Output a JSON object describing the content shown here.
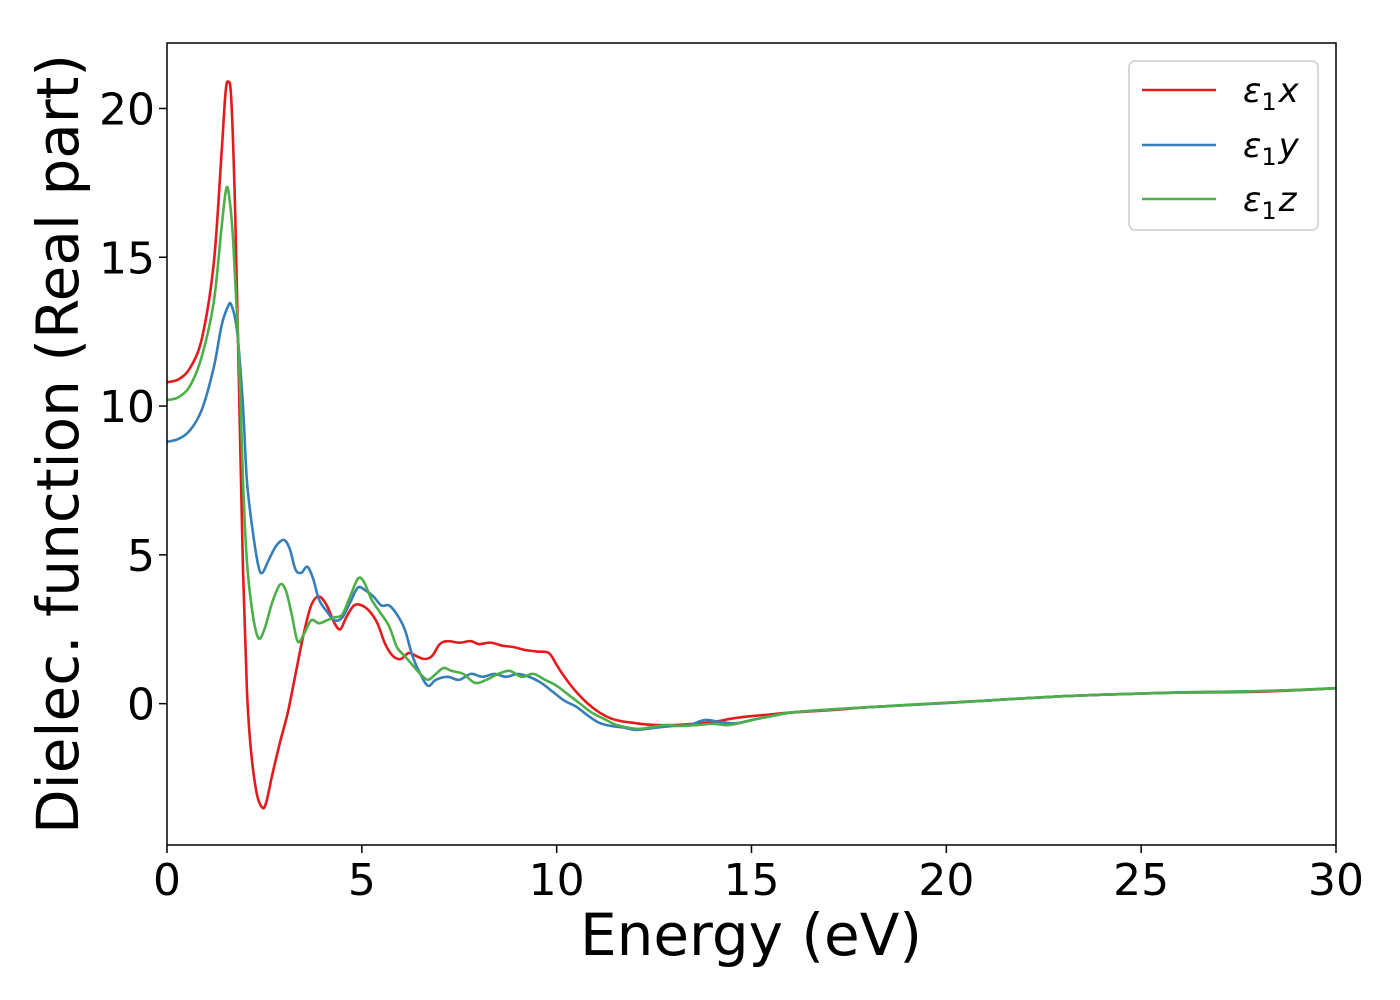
{
  "chart_data": {
    "type": "line",
    "xlabel": "Energy (eV)",
    "ylabel": "Dielec. function (Real part)",
    "xlim": [
      0,
      30
    ],
    "ylim": [
      -4.75,
      22.2
    ],
    "xticks": [
      0,
      5,
      10,
      15,
      20,
      25,
      30
    ],
    "xtick_labels": [
      "0",
      "5",
      "10",
      "15",
      "20",
      "25",
      "30"
    ],
    "yticks": [
      0,
      5,
      10,
      15,
      20
    ],
    "ytick_labels": [
      "0",
      "5",
      "10",
      "15",
      "20"
    ],
    "grid": false,
    "legend_position": "top-right",
    "series": [
      {
        "name": "ε₁x",
        "legend_main": "ε",
        "legend_sub": "1",
        "legend_suffix": "x",
        "color": "#e41a1c",
        "points": [
          [
            0,
            10.8
          ],
          [
            0.3,
            10.9
          ],
          [
            0.6,
            11.3
          ],
          [
            0.9,
            12.3
          ],
          [
            1.2,
            14.8
          ],
          [
            1.4,
            18.5
          ],
          [
            1.5,
            20.5
          ],
          [
            1.57,
            20.9
          ],
          [
            1.65,
            20.3
          ],
          [
            1.75,
            16.5
          ],
          [
            1.85,
            10.5
          ],
          [
            1.95,
            4.5
          ],
          [
            2.05,
            0.5
          ],
          [
            2.15,
            -1.5
          ],
          [
            2.3,
            -3.0
          ],
          [
            2.45,
            -3.5
          ],
          [
            2.55,
            -3.3
          ],
          [
            2.7,
            -2.4
          ],
          [
            2.9,
            -1.3
          ],
          [
            3.1,
            -0.3
          ],
          [
            3.3,
            1.0
          ],
          [
            3.5,
            2.3
          ],
          [
            3.7,
            3.3
          ],
          [
            3.9,
            3.6
          ],
          [
            4.1,
            3.3
          ],
          [
            4.3,
            2.7
          ],
          [
            4.45,
            2.5
          ],
          [
            4.6,
            2.9
          ],
          [
            4.8,
            3.3
          ],
          [
            5.0,
            3.3
          ],
          [
            5.2,
            3.1
          ],
          [
            5.4,
            2.7
          ],
          [
            5.6,
            2.0
          ],
          [
            5.8,
            1.6
          ],
          [
            6.0,
            1.5
          ],
          [
            6.2,
            1.7
          ],
          [
            6.4,
            1.6
          ],
          [
            6.6,
            1.5
          ],
          [
            6.8,
            1.6
          ],
          [
            7.0,
            2.0
          ],
          [
            7.2,
            2.1
          ],
          [
            7.5,
            2.05
          ],
          [
            7.8,
            2.1
          ],
          [
            8.0,
            2.0
          ],
          [
            8.3,
            2.05
          ],
          [
            8.6,
            1.95
          ],
          [
            8.9,
            1.9
          ],
          [
            9.2,
            1.8
          ],
          [
            9.5,
            1.75
          ],
          [
            9.8,
            1.7
          ],
          [
            10.0,
            1.3
          ],
          [
            10.2,
            0.9
          ],
          [
            10.5,
            0.4
          ],
          [
            10.8,
            0.0
          ],
          [
            11.1,
            -0.3
          ],
          [
            11.4,
            -0.5
          ],
          [
            11.7,
            -0.6
          ],
          [
            12.0,
            -0.65
          ],
          [
            12.3,
            -0.7
          ],
          [
            12.6,
            -0.72
          ],
          [
            13.0,
            -0.72
          ],
          [
            13.5,
            -0.68
          ],
          [
            14.0,
            -0.62
          ],
          [
            14.5,
            -0.5
          ],
          [
            15.0,
            -0.42
          ],
          [
            15.5,
            -0.36
          ],
          [
            16.0,
            -0.3
          ],
          [
            17.0,
            -0.22
          ],
          [
            18.0,
            -0.12
          ],
          [
            19.0,
            -0.05
          ],
          [
            20.0,
            0.03
          ],
          [
            21.0,
            0.1
          ],
          [
            22.0,
            0.18
          ],
          [
            23.0,
            0.25
          ],
          [
            24.0,
            0.3
          ],
          [
            25.0,
            0.34
          ],
          [
            26.0,
            0.37
          ],
          [
            27.0,
            0.38
          ],
          [
            28.0,
            0.4
          ],
          [
            29.0,
            0.45
          ],
          [
            30.0,
            0.52
          ]
        ]
      },
      {
        "name": "ε₁y",
        "legend_main": "ε",
        "legend_sub": "1",
        "legend_suffix": "y",
        "color": "#377eb8",
        "points": [
          [
            0,
            8.8
          ],
          [
            0.3,
            8.9
          ],
          [
            0.6,
            9.2
          ],
          [
            0.9,
            9.9
          ],
          [
            1.2,
            11.3
          ],
          [
            1.4,
            12.7
          ],
          [
            1.55,
            13.3
          ],
          [
            1.65,
            13.4
          ],
          [
            1.8,
            12.5
          ],
          [
            1.95,
            10.0
          ],
          [
            2.05,
            7.5
          ],
          [
            2.2,
            5.8
          ],
          [
            2.35,
            4.6
          ],
          [
            2.45,
            4.4
          ],
          [
            2.6,
            4.8
          ],
          [
            2.8,
            5.3
          ],
          [
            3.0,
            5.5
          ],
          [
            3.15,
            5.2
          ],
          [
            3.3,
            4.5
          ],
          [
            3.45,
            4.4
          ],
          [
            3.6,
            4.6
          ],
          [
            3.75,
            4.2
          ],
          [
            3.9,
            3.5
          ],
          [
            4.1,
            3.1
          ],
          [
            4.3,
            2.8
          ],
          [
            4.5,
            2.9
          ],
          [
            4.7,
            3.4
          ],
          [
            4.9,
            3.9
          ],
          [
            5.1,
            3.8
          ],
          [
            5.3,
            3.6
          ],
          [
            5.5,
            3.3
          ],
          [
            5.7,
            3.3
          ],
          [
            5.9,
            3.0
          ],
          [
            6.1,
            2.5
          ],
          [
            6.3,
            1.6
          ],
          [
            6.5,
            1.0
          ],
          [
            6.7,
            0.6
          ],
          [
            6.9,
            0.8
          ],
          [
            7.2,
            0.9
          ],
          [
            7.5,
            0.8
          ],
          [
            7.8,
            1.0
          ],
          [
            8.1,
            0.9
          ],
          [
            8.4,
            1.0
          ],
          [
            8.7,
            0.9
          ],
          [
            9.0,
            1.0
          ],
          [
            9.3,
            0.9
          ],
          [
            9.6,
            0.7
          ],
          [
            9.9,
            0.4
          ],
          [
            10.2,
            0.1
          ],
          [
            10.5,
            -0.1
          ],
          [
            10.8,
            -0.4
          ],
          [
            11.1,
            -0.65
          ],
          [
            11.4,
            -0.75
          ],
          [
            11.7,
            -0.8
          ],
          [
            12.0,
            -0.88
          ],
          [
            12.3,
            -0.85
          ],
          [
            12.6,
            -0.8
          ],
          [
            13.0,
            -0.75
          ],
          [
            13.4,
            -0.72
          ],
          [
            13.8,
            -0.55
          ],
          [
            14.2,
            -0.62
          ],
          [
            14.6,
            -0.66
          ],
          [
            15.0,
            -0.55
          ],
          [
            15.5,
            -0.42
          ],
          [
            16.0,
            -0.3
          ],
          [
            17.0,
            -0.2
          ],
          [
            18.0,
            -0.12
          ],
          [
            19.0,
            -0.05
          ],
          [
            20.0,
            0.02
          ],
          [
            21.0,
            0.1
          ],
          [
            22.0,
            0.18
          ],
          [
            23.0,
            0.25
          ],
          [
            24.0,
            0.3
          ],
          [
            25.0,
            0.34
          ],
          [
            26.0,
            0.38
          ],
          [
            27.0,
            0.4
          ],
          [
            28.0,
            0.42
          ],
          [
            29.0,
            0.46
          ],
          [
            30.0,
            0.52
          ]
        ]
      },
      {
        "name": "ε₁z",
        "legend_main": "ε",
        "legend_sub": "1",
        "legend_suffix": "z",
        "color": "#4daf4a",
        "points": [
          [
            0,
            10.2
          ],
          [
            0.3,
            10.3
          ],
          [
            0.6,
            10.7
          ],
          [
            0.9,
            11.7
          ],
          [
            1.2,
            13.5
          ],
          [
            1.4,
            16.0
          ],
          [
            1.52,
            17.3
          ],
          [
            1.6,
            17.0
          ],
          [
            1.7,
            15.5
          ],
          [
            1.85,
            11.5
          ],
          [
            1.95,
            7.5
          ],
          [
            2.05,
            4.8
          ],
          [
            2.2,
            3.0
          ],
          [
            2.35,
            2.2
          ],
          [
            2.5,
            2.5
          ],
          [
            2.7,
            3.4
          ],
          [
            2.9,
            4.0
          ],
          [
            3.05,
            3.8
          ],
          [
            3.2,
            3.0
          ],
          [
            3.35,
            2.1
          ],
          [
            3.5,
            2.3
          ],
          [
            3.7,
            2.8
          ],
          [
            3.9,
            2.7
          ],
          [
            4.1,
            2.8
          ],
          [
            4.3,
            2.9
          ],
          [
            4.5,
            3.0
          ],
          [
            4.7,
            3.6
          ],
          [
            4.9,
            4.2
          ],
          [
            5.05,
            4.1
          ],
          [
            5.25,
            3.5
          ],
          [
            5.45,
            3.1
          ],
          [
            5.7,
            2.6
          ],
          [
            5.9,
            1.9
          ],
          [
            6.1,
            1.6
          ],
          [
            6.3,
            1.3
          ],
          [
            6.5,
            1.0
          ],
          [
            6.7,
            0.8
          ],
          [
            6.9,
            1.0
          ],
          [
            7.1,
            1.2
          ],
          [
            7.3,
            1.1
          ],
          [
            7.6,
            1.0
          ],
          [
            7.9,
            0.7
          ],
          [
            8.2,
            0.8
          ],
          [
            8.5,
            1.0
          ],
          [
            8.8,
            1.1
          ],
          [
            9.1,
            0.9
          ],
          [
            9.4,
            1.0
          ],
          [
            9.7,
            0.8
          ],
          [
            10.0,
            0.6
          ],
          [
            10.3,
            0.3
          ],
          [
            10.6,
            0.0
          ],
          [
            10.9,
            -0.3
          ],
          [
            11.2,
            -0.5
          ],
          [
            11.5,
            -0.7
          ],
          [
            11.8,
            -0.8
          ],
          [
            12.1,
            -0.85
          ],
          [
            12.4,
            -0.8
          ],
          [
            12.8,
            -0.72
          ],
          [
            13.2,
            -0.75
          ],
          [
            13.6,
            -0.72
          ],
          [
            14.0,
            -0.68
          ],
          [
            14.4,
            -0.72
          ],
          [
            14.8,
            -0.62
          ],
          [
            15.2,
            -0.5
          ],
          [
            15.6,
            -0.4
          ],
          [
            16.0,
            -0.3
          ],
          [
            17.0,
            -0.2
          ],
          [
            18.0,
            -0.12
          ],
          [
            19.0,
            -0.04
          ],
          [
            20.0,
            0.03
          ],
          [
            21.0,
            0.1
          ],
          [
            22.0,
            0.18
          ],
          [
            23.0,
            0.25
          ],
          [
            24.0,
            0.3
          ],
          [
            25.0,
            0.34
          ],
          [
            26.0,
            0.37
          ],
          [
            27.0,
            0.39
          ],
          [
            28.0,
            0.42
          ],
          [
            29.0,
            0.46
          ],
          [
            30.0,
            0.52
          ]
        ]
      }
    ]
  }
}
